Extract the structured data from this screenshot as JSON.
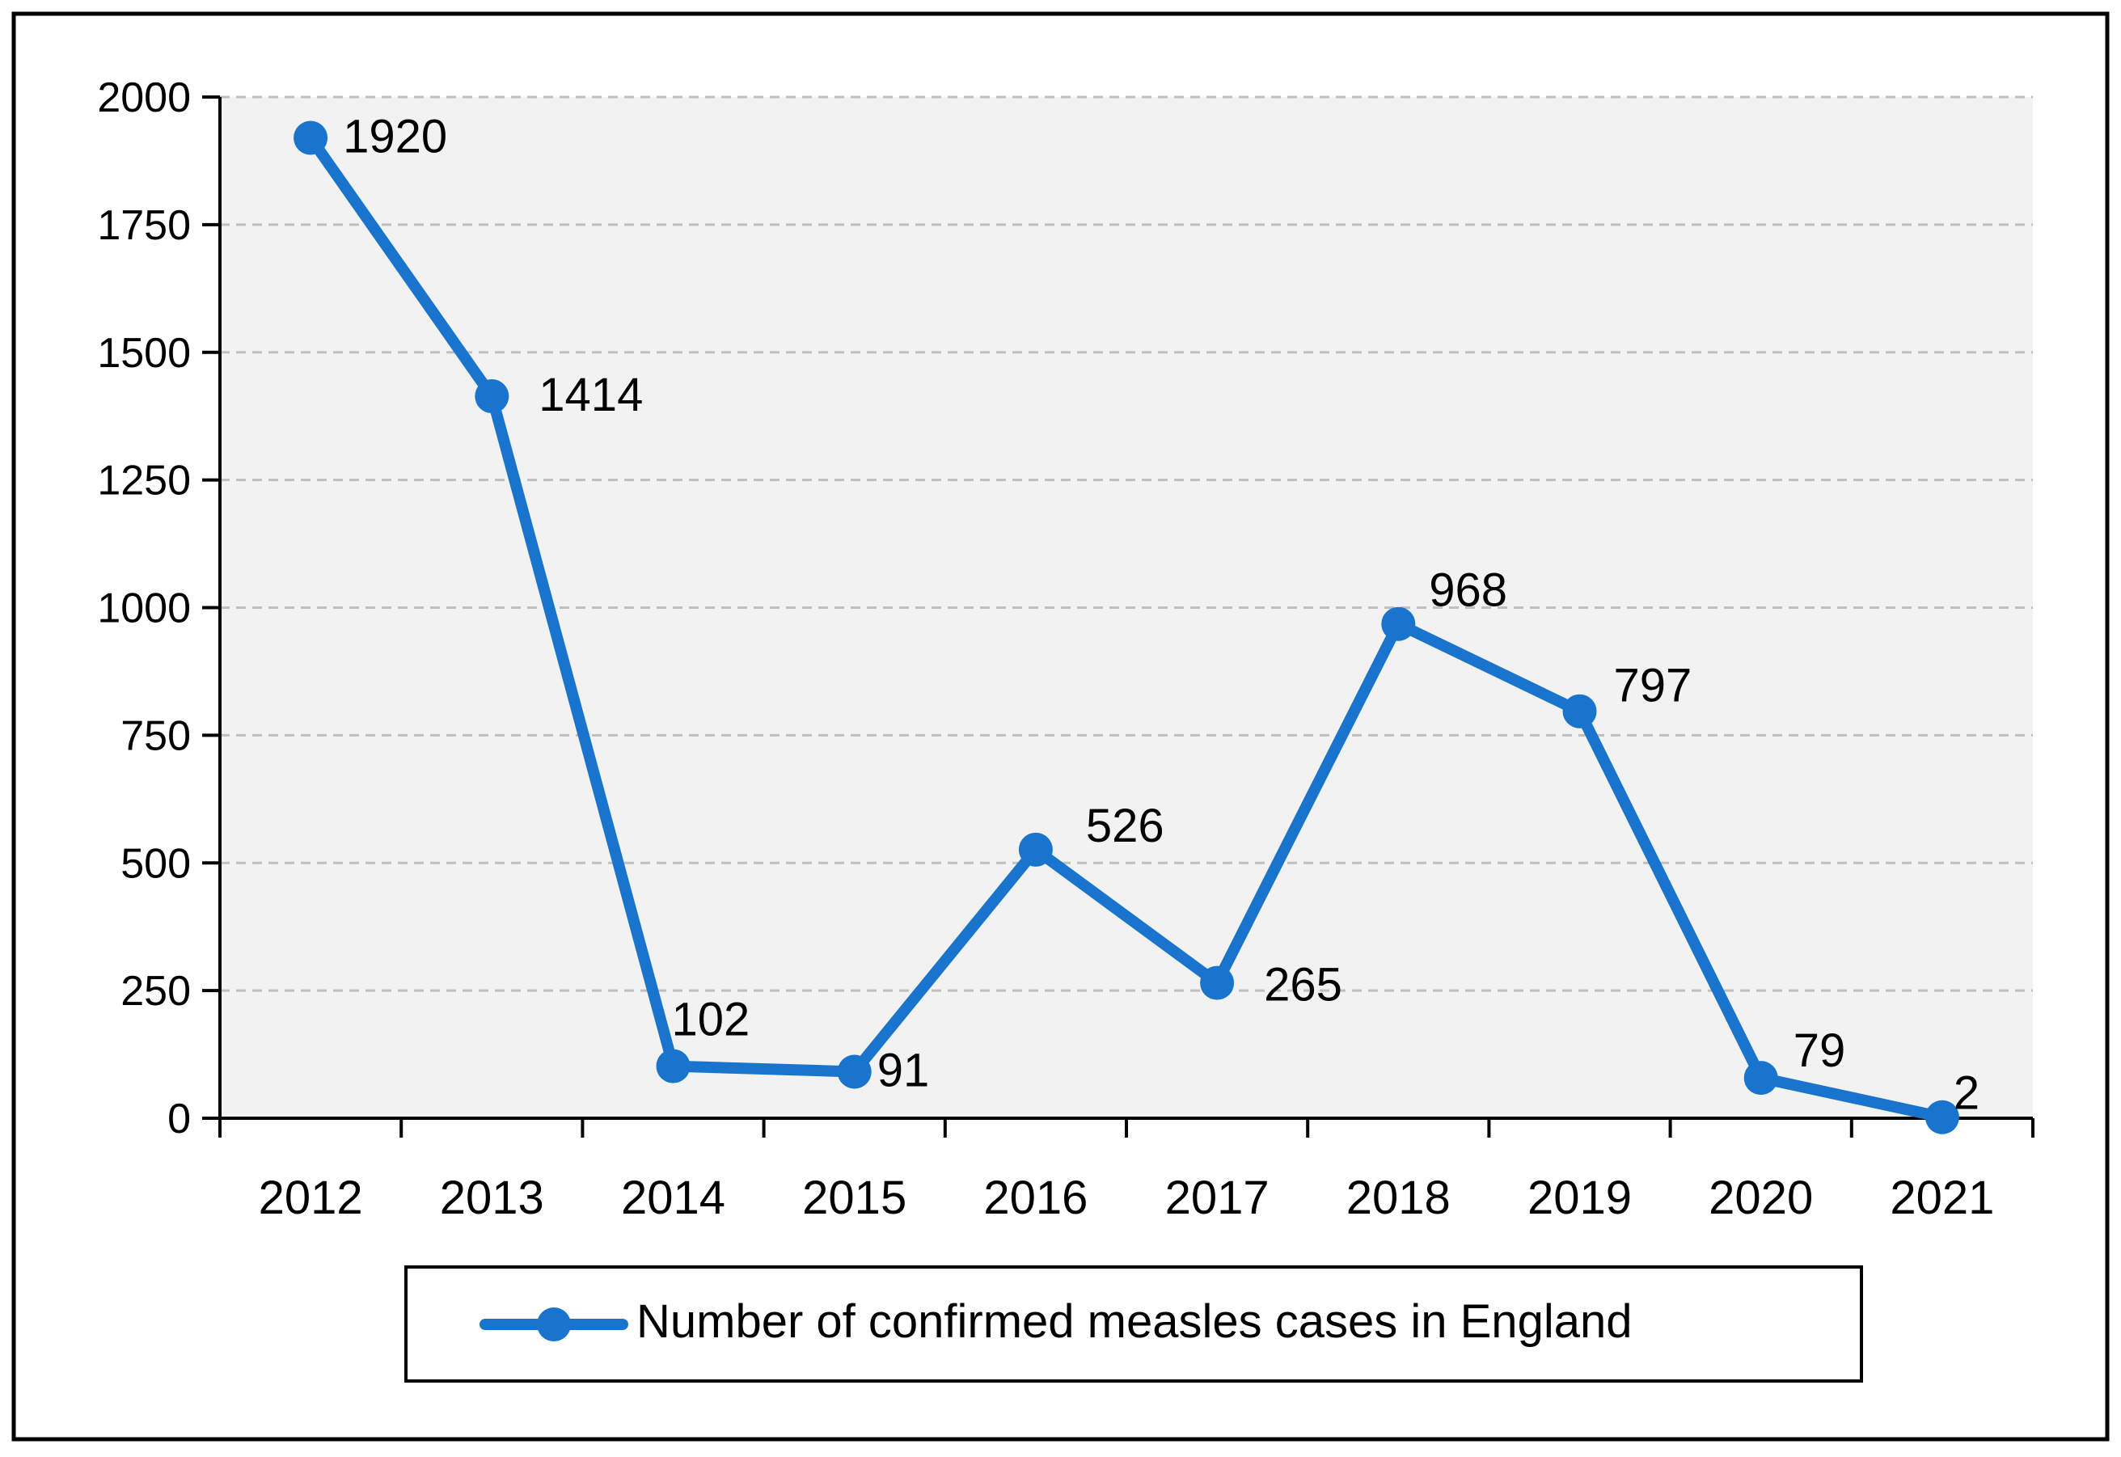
{
  "chart_data": {
    "type": "line",
    "title": "",
    "xlabel": "",
    "ylabel": "",
    "categories": [
      "2012",
      "2013",
      "2014",
      "2015",
      "2016",
      "2017",
      "2018",
      "2019",
      "2020",
      "2021"
    ],
    "series": [
      {
        "name": "Number of confirmed measles cases in England",
        "values": [
          1920,
          1414,
          102,
          91,
          526,
          265,
          968,
          797,
          79,
          2
        ],
        "labels": [
          "1920",
          "1414",
          "102",
          "91",
          "526",
          "265",
          "968",
          "797",
          "79",
          "2"
        ],
        "color": "#1874CD"
      }
    ],
    "ylim": [
      0,
      2000
    ],
    "yticks": [
      0,
      250,
      500,
      750,
      1000,
      1250,
      1500,
      1750,
      2000
    ],
    "ytick_labels": [
      "0",
      "250",
      "500",
      "750",
      "1000",
      "1250",
      "1500",
      "1750",
      "2000"
    ],
    "grid": true,
    "legend_position": "bottom"
  },
  "colors": {
    "plot_background": "#F2F2F2",
    "gridline": "#BFBFBF",
    "axis": "#000000",
    "series": "#1874CD"
  }
}
